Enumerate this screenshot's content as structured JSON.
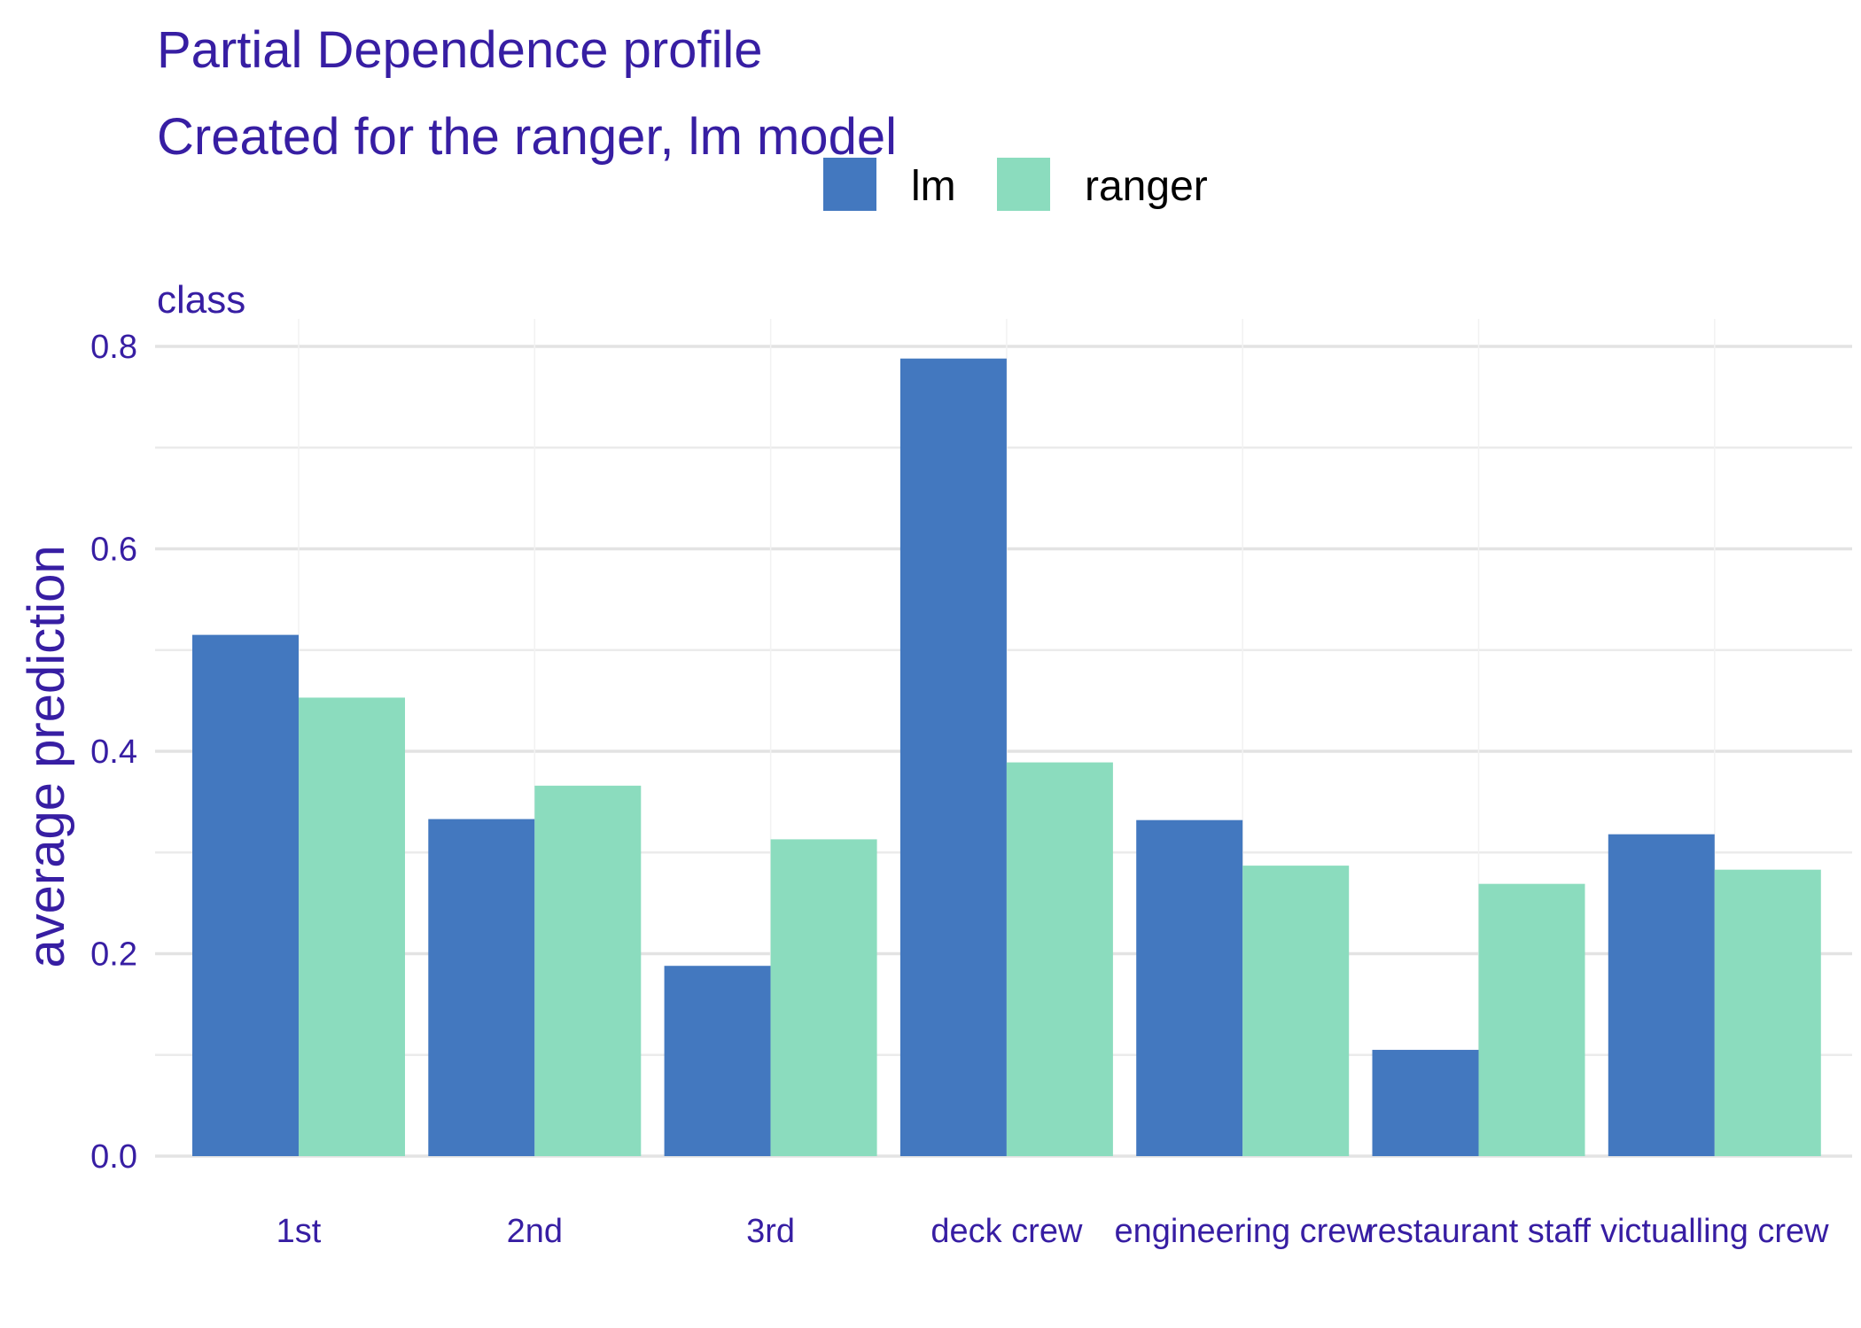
{
  "chart_data": {
    "type": "bar",
    "title": "Partial Dependence profile",
    "subtitle": "Created for the ranger, lm model",
    "panel_label": "class",
    "ylabel": "average prediction",
    "xlabel": "",
    "ylim": [
      0,
      0.82
    ],
    "y_ticks": [
      0.0,
      0.2,
      0.4,
      0.6,
      0.8
    ],
    "y_tick_labels": [
      "0.0",
      "0.2",
      "0.4",
      "0.6",
      "0.8"
    ],
    "grid": true,
    "legend_position": "top",
    "categories": [
      "1st",
      "2nd",
      "3rd",
      "deck crew",
      "engineering crew",
      "restaurant staff",
      "victualling crew"
    ],
    "series": [
      {
        "name": "lm",
        "color": "#4378bf",
        "values": [
          0.515,
          0.333,
          0.188,
          0.788,
          0.332,
          0.105,
          0.318
        ]
      },
      {
        "name": "ranger",
        "color": "#8bdcbe",
        "values": [
          0.453,
          0.366,
          0.313,
          0.389,
          0.287,
          0.269,
          0.283
        ]
      }
    ]
  }
}
